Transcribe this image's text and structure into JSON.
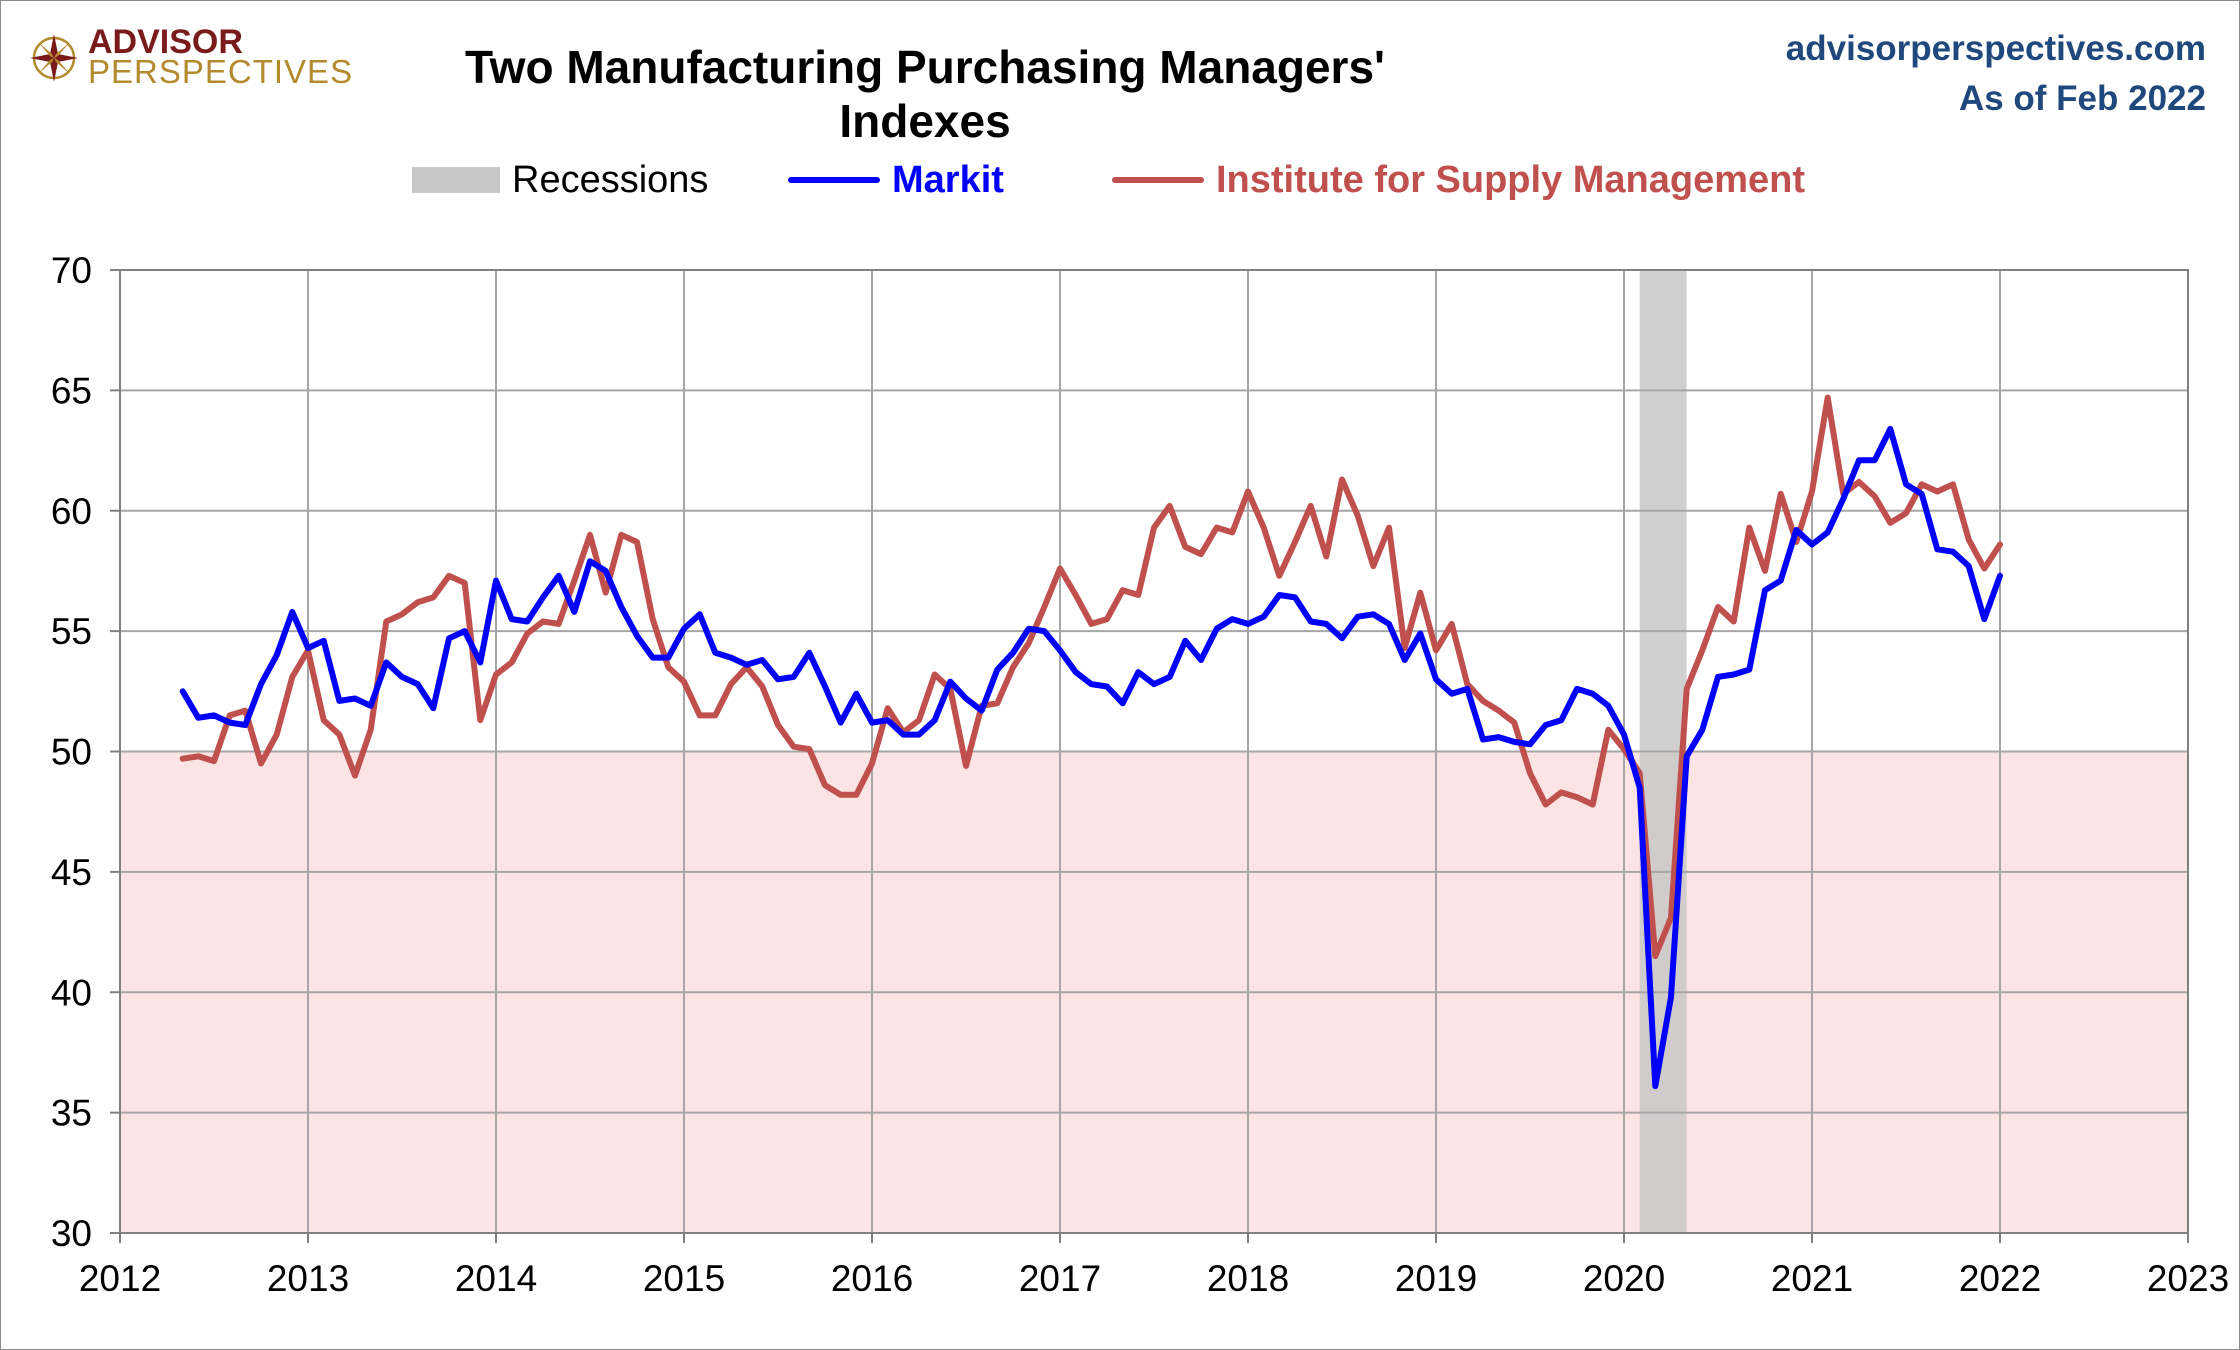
{
  "header": {
    "logo_line1": "ADVISOR",
    "logo_line2": "PERSPECTIVES",
    "title": "Two Manufacturing Purchasing Managers' Indexes",
    "site": "advisorperspectives.com",
    "as_of": "As of Feb 2022"
  },
  "legend": {
    "recessions": "Recessions",
    "markit": "Markit",
    "ism": "Institute for Supply Management"
  },
  "colors": {
    "markit": "#0000ff",
    "ism": "#c0504d",
    "recession": "#c8c8c8",
    "contraction_zone": "#fde4e4",
    "grid": "#a6a6a6",
    "site_text": "#1f497d"
  },
  "chart_data": {
    "type": "line",
    "title": "Two Manufacturing Purchasing Managers' Indexes",
    "xlabel": "",
    "ylabel": "",
    "xlim": [
      2012,
      2023
    ],
    "ylim": [
      30,
      70
    ],
    "x_ticks": [
      "2012",
      "2013",
      "2014",
      "2015",
      "2016",
      "2017",
      "2018",
      "2019",
      "2020",
      "2021",
      "2022",
      "2023"
    ],
    "y_ticks": [
      "30",
      "35",
      "40",
      "45",
      "50",
      "55",
      "60",
      "65",
      "70"
    ],
    "grid": true,
    "legend_position": "top-center",
    "shaded_below": 50,
    "recessions": [
      {
        "start": "2020-02",
        "end": "2020-04"
      }
    ],
    "series": [
      {
        "name": "Markit",
        "start": "2012-05",
        "values": [
          52.5,
          51.4,
          51.5,
          51.2,
          51.1,
          52.8,
          54.0,
          55.8,
          54.3,
          54.6,
          52.1,
          52.2,
          51.9,
          53.7,
          53.1,
          52.8,
          51.8,
          54.7,
          55.0,
          53.7,
          57.1,
          55.5,
          55.4,
          56.4,
          57.3,
          55.8,
          57.9,
          57.5,
          56.0,
          54.8,
          53.9,
          53.9,
          55.1,
          55.7,
          54.1,
          53.9,
          53.6,
          53.8,
          53.0,
          53.1,
          54.1,
          52.7,
          51.2,
          52.4,
          51.2,
          51.3,
          50.7,
          50.7,
          51.3,
          52.9,
          52.2,
          51.7,
          53.4,
          54.1,
          55.1,
          55.0,
          54.2,
          53.3,
          52.8,
          52.7,
          52.0,
          53.3,
          52.8,
          53.1,
          54.6,
          53.8,
          55.1,
          55.5,
          55.3,
          55.6,
          56.5,
          56.4,
          55.4,
          55.3,
          54.7,
          55.6,
          55.7,
          55.3,
          53.8,
          54.9,
          53.0,
          52.4,
          52.6,
          50.5,
          50.6,
          50.4,
          50.3,
          51.1,
          51.3,
          52.6,
          52.4,
          51.9,
          50.7,
          48.5,
          36.1,
          39.8,
          49.8,
          50.9,
          53.1,
          53.2,
          53.4,
          56.7,
          57.1,
          59.2,
          58.6,
          59.1,
          60.5,
          62.1,
          62.1,
          63.4,
          61.1,
          60.7,
          58.4,
          58.3,
          57.7,
          55.5,
          57.3
        ]
      },
      {
        "name": "Institute for Supply Management",
        "start": "2012-05",
        "values": [
          49.7,
          49.8,
          49.6,
          51.5,
          51.7,
          49.5,
          50.7,
          53.1,
          54.2,
          51.3,
          50.7,
          49.0,
          50.9,
          55.4,
          55.7,
          56.2,
          56.4,
          57.3,
          57.0,
          51.3,
          53.2,
          53.7,
          54.9,
          55.4,
          55.3,
          57.1,
          59.0,
          56.6,
          59.0,
          58.7,
          55.5,
          53.5,
          52.9,
          51.5,
          51.5,
          52.8,
          53.5,
          52.7,
          51.1,
          50.2,
          50.1,
          48.6,
          48.2,
          48.2,
          49.5,
          51.8,
          50.8,
          51.3,
          53.2,
          52.6,
          49.4,
          51.9,
          52.0,
          53.5,
          54.5,
          56.0,
          57.6,
          56.5,
          55.3,
          55.5,
          56.7,
          56.5,
          59.3,
          60.2,
          58.5,
          58.2,
          59.3,
          59.1,
          60.8,
          59.3,
          57.3,
          58.7,
          60.2,
          58.1,
          61.3,
          59.8,
          57.7,
          59.3,
          54.3,
          56.6,
          54.2,
          55.3,
          52.8,
          52.1,
          51.7,
          51.2,
          49.1,
          47.8,
          48.3,
          48.1,
          47.8,
          50.9,
          50.1,
          49.1,
          41.5,
          43.1,
          52.6,
          54.2,
          56.0,
          55.4,
          59.3,
          57.5,
          60.7,
          58.7,
          60.8,
          64.7,
          60.7,
          61.2,
          60.6,
          59.5,
          59.9,
          61.1,
          60.8,
          61.1,
          58.8,
          57.6,
          58.6
        ]
      }
    ]
  }
}
